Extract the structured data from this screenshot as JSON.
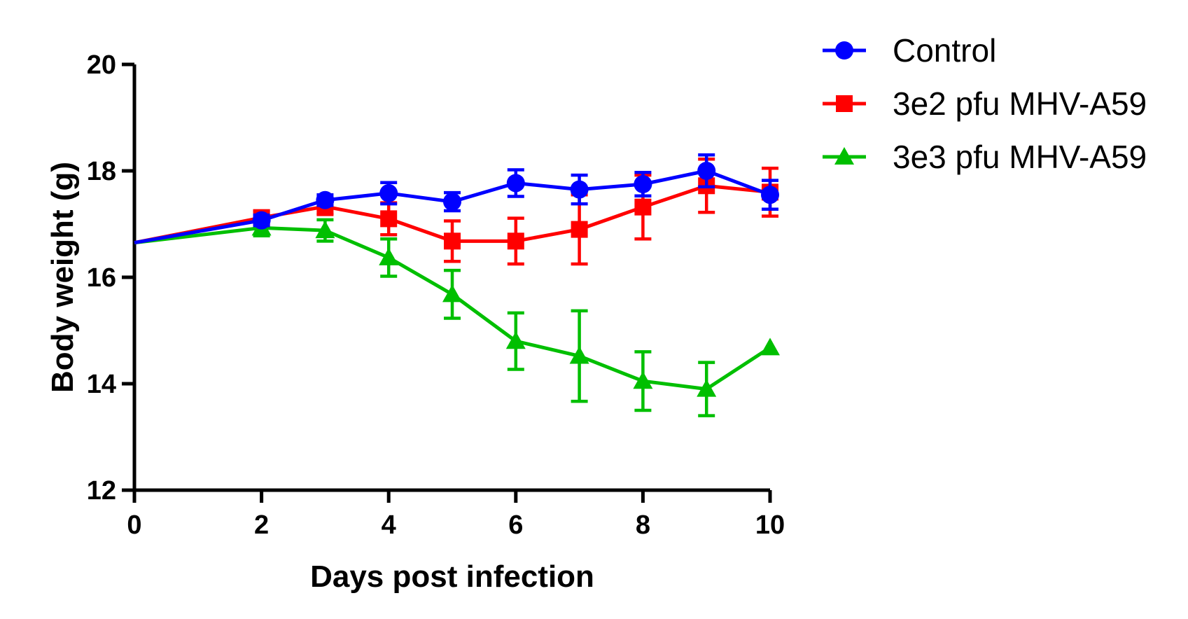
{
  "chart_data": {
    "type": "line",
    "title": "",
    "xlabel": "Days post infection",
    "ylabel": "Body weight (g)",
    "xlim": [
      0,
      10
    ],
    "ylim": [
      12,
      20
    ],
    "x_ticks": [
      0,
      2,
      4,
      6,
      8,
      10
    ],
    "y_ticks": [
      12,
      14,
      16,
      18,
      20
    ],
    "grid": false,
    "legend_position": "top-right, outside plot",
    "series": [
      {
        "name": "Control",
        "color": "#0000ff",
        "marker": "circle",
        "points": [
          {
            "x": 0,
            "y": 16.65,
            "err": 0
          },
          {
            "x": 2,
            "y": 17.07,
            "err": 0.1
          },
          {
            "x": 3,
            "y": 17.45,
            "err": 0.1
          },
          {
            "x": 4,
            "y": 17.58,
            "err": 0.2
          },
          {
            "x": 5,
            "y": 17.42,
            "err": 0.17
          },
          {
            "x": 6,
            "y": 17.77,
            "err": 0.25
          },
          {
            "x": 7,
            "y": 17.65,
            "err": 0.27
          },
          {
            "x": 8,
            "y": 17.75,
            "err": 0.22
          },
          {
            "x": 9,
            "y": 18.0,
            "err": 0.3
          },
          {
            "x": 10,
            "y": 17.55,
            "err": 0.27
          }
        ]
      },
      {
        "name": "3e2 pfu MHV-A59",
        "color": "#ff0000",
        "marker": "square",
        "points": [
          {
            "x": 0,
            "y": 16.65,
            "err": 0
          },
          {
            "x": 2,
            "y": 17.12,
            "err": 0.13
          },
          {
            "x": 3,
            "y": 17.33,
            "err": 0.15
          },
          {
            "x": 4,
            "y": 17.1,
            "err": 0.3
          },
          {
            "x": 5,
            "y": 16.68,
            "err": 0.38
          },
          {
            "x": 6,
            "y": 16.68,
            "err": 0.43
          },
          {
            "x": 7,
            "y": 16.9,
            "err": 0.65
          },
          {
            "x": 8,
            "y": 17.32,
            "err": 0.6
          },
          {
            "x": 9,
            "y": 17.72,
            "err": 0.5
          },
          {
            "x": 10,
            "y": 17.6,
            "err": 0.45
          }
        ]
      },
      {
        "name": "3e3 pfu MHV-A59",
        "color": "#00bf00",
        "marker": "triangle",
        "points": [
          {
            "x": 0,
            "y": 16.65,
            "err": 0
          },
          {
            "x": 2,
            "y": 16.93,
            "err": 0.15
          },
          {
            "x": 3,
            "y": 16.88,
            "err": 0.2
          },
          {
            "x": 4,
            "y": 16.37,
            "err": 0.35
          },
          {
            "x": 5,
            "y": 15.68,
            "err": 0.45
          },
          {
            "x": 6,
            "y": 14.8,
            "err": 0.53
          },
          {
            "x": 7,
            "y": 14.52,
            "err": 0.85
          },
          {
            "x": 8,
            "y": 14.05,
            "err": 0.55
          },
          {
            "x": 9,
            "y": 13.9,
            "err": 0.5
          },
          {
            "x": 10,
            "y": 14.68,
            "err": 0
          }
        ]
      }
    ]
  }
}
